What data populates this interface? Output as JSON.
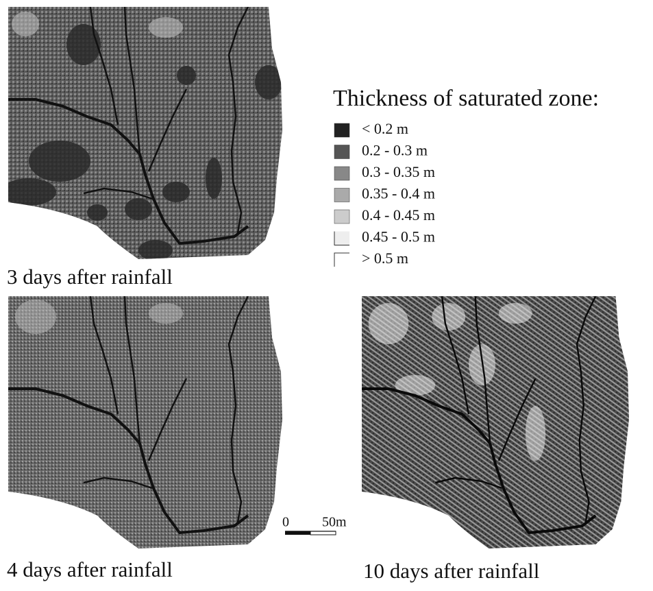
{
  "legend": {
    "title": "Thickness of saturated zone:",
    "items": [
      {
        "label": "< 0.2 m",
        "color": "#222222"
      },
      {
        "label": "0.2 - 0.3 m",
        "color": "#555555"
      },
      {
        "label": "0.3 - 0.35 m",
        "color": "#888888"
      },
      {
        "label": "0.35 - 0.4 m",
        "color": "#aaaaaa"
      },
      {
        "label": "0.4 - 0.45 m",
        "color": "#cccccc"
      },
      {
        "label": "0.45 - 0.5 m",
        "color": "#eeeeee"
      },
      {
        "label": "> 0.5 m",
        "color": "#ffffff"
      }
    ]
  },
  "panels": [
    {
      "caption": "3 days after rainfall"
    },
    {
      "caption": "4 days after rainfall"
    },
    {
      "caption": "10 days after rainfall"
    }
  ],
  "scale_bar": {
    "start": "0",
    "end": "50m"
  }
}
